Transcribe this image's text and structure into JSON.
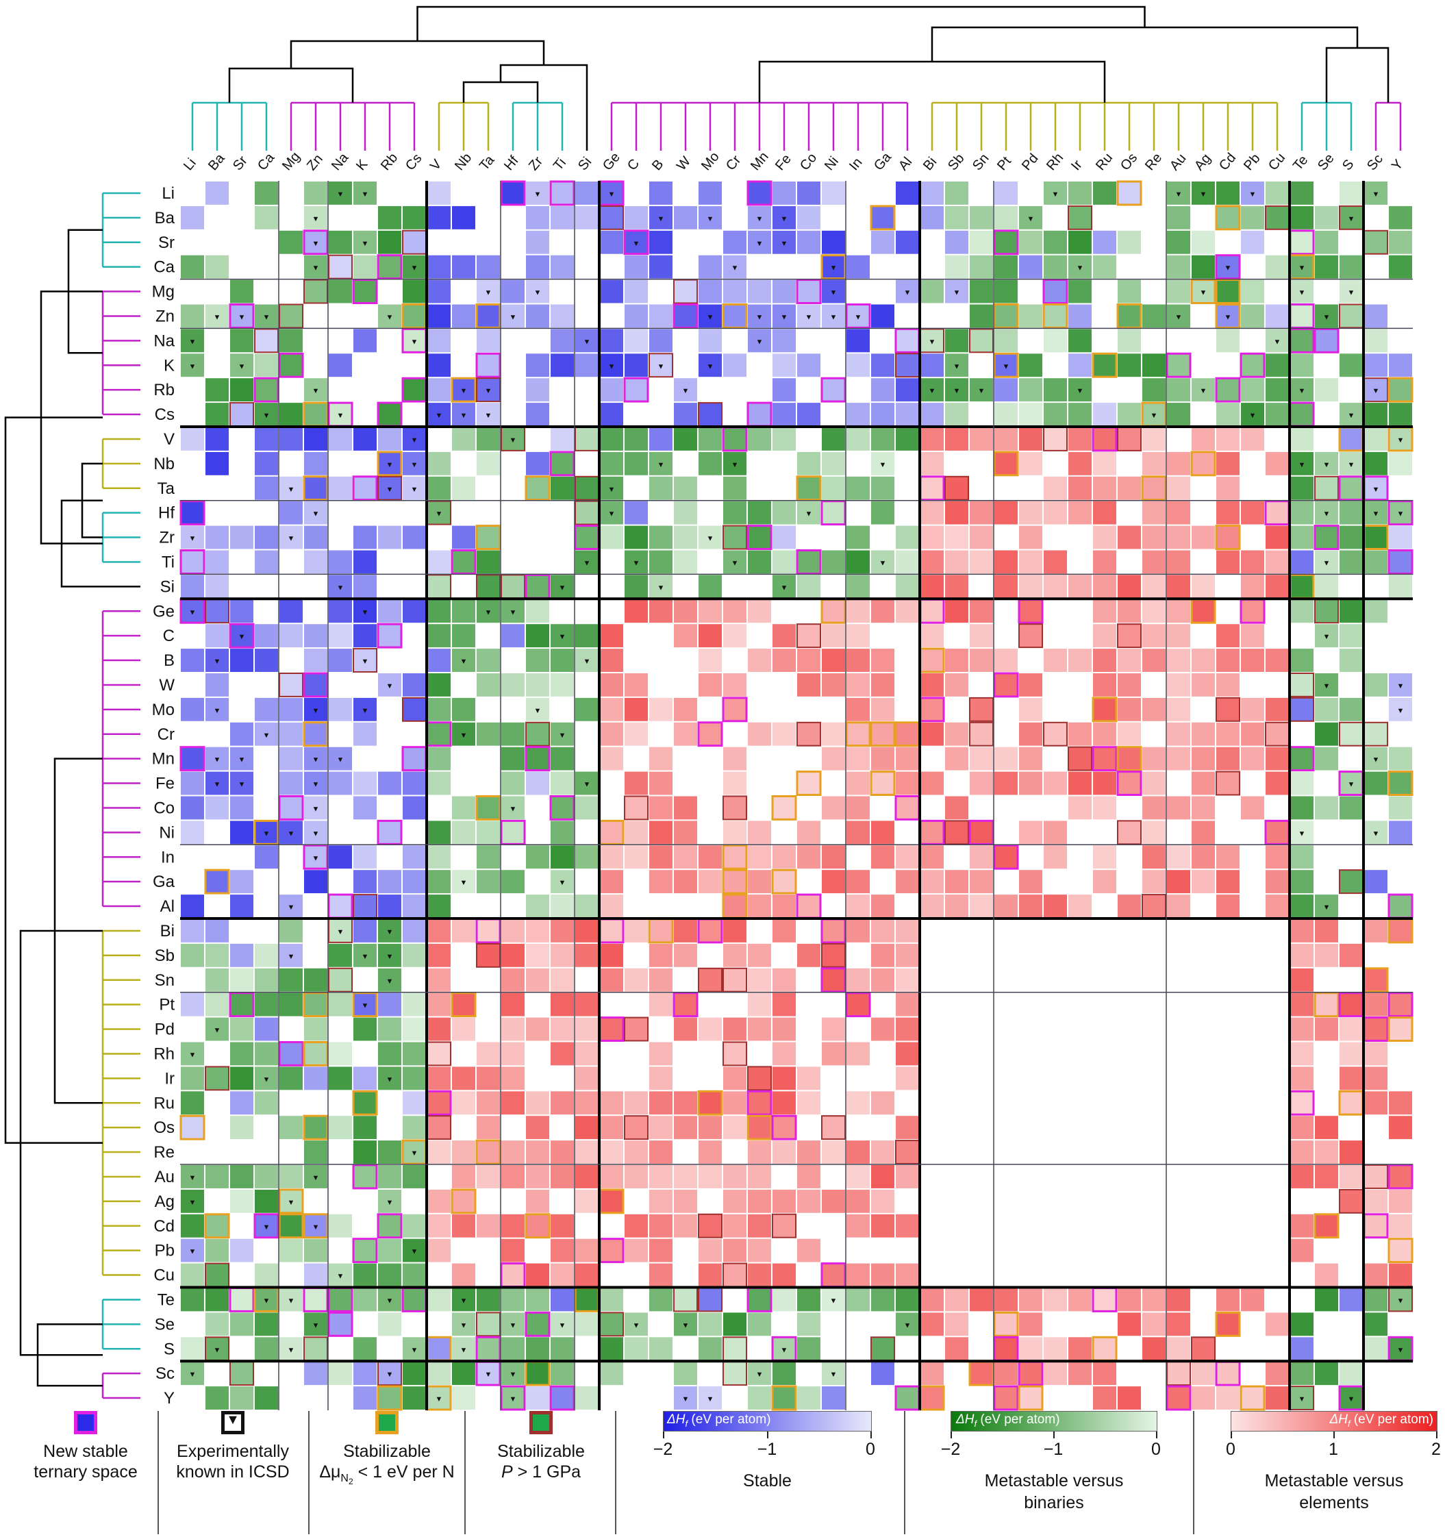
{
  "chart_data": {
    "type": "heatmap",
    "title": "",
    "elements": [
      "Li",
      "Ba",
      "Sr",
      "Ca",
      "Mg",
      "Zn",
      "Na",
      "K",
      "Rb",
      "Cs",
      "V",
      "Nb",
      "Ta",
      "Hf",
      "Zr",
      "Ti",
      "Si",
      "Ge",
      "C",
      "B",
      "W",
      "Mo",
      "Cr",
      "Mn",
      "Fe",
      "Co",
      "Ni",
      "In",
      "Ga",
      "Al",
      "Bi",
      "Sb",
      "Sn",
      "Pt",
      "Pd",
      "Rh",
      "Ir",
      "Ru",
      "Os",
      "Re",
      "Au",
      "Ag",
      "Cd",
      "Pb",
      "Cu",
      "Te",
      "Se",
      "S",
      "Sc",
      "Y"
    ],
    "clusters": [
      {
        "members": [
          "Li",
          "Ba",
          "Sr",
          "Ca"
        ],
        "color": "#22b3b3"
      },
      {
        "members": [
          "Mg",
          "Zn",
          "Na",
          "K",
          "Rb",
          "Cs"
        ],
        "color": "#c020c8"
      },
      {
        "members": [
          "V",
          "Nb",
          "Ta"
        ],
        "color": "#b8b018"
      },
      {
        "members": [
          "Hf",
          "Zr",
          "Ti"
        ],
        "color": "#22b3b3"
      },
      {
        "members": [
          "Si"
        ],
        "color": "#000000"
      },
      {
        "members": [
          "Ge",
          "C",
          "B",
          "W",
          "Mo",
          "Cr",
          "Mn",
          "Fe",
          "Co",
          "Ni",
          "In",
          "Ga",
          "Al"
        ],
        "color": "#c020c8"
      },
      {
        "members": [
          "Bi",
          "Sb",
          "Sn",
          "Pt",
          "Pd",
          "Rh",
          "Ir",
          "Ru",
          "Os",
          "Re",
          "Au",
          "Ag",
          "Cd",
          "Pb",
          "Cu"
        ],
        "color": "#b8b018"
      },
      {
        "members": [
          "Te",
          "Se",
          "S"
        ],
        "color": "#22b3b3"
      },
      {
        "members": [
          "Sc",
          "Y"
        ],
        "color": "#c020c8"
      }
    ],
    "block_boundaries_after": [
      "Ca",
      "Zn",
      "Cs",
      "Ta",
      "Ti",
      "Si",
      "Ni",
      "Al",
      "Sn",
      "Re",
      "Cu",
      "S"
    ],
    "major_boundaries_after": [
      "Cs",
      "Si",
      "Al",
      "Cu",
      "S"
    ],
    "color_scales": {
      "stable": {
        "range": [
          -2,
          0
        ],
        "colors": [
          "#1f1fe6",
          "#e8e8fb"
        ]
      },
      "metastable_vs_binaries": {
        "range": [
          -2,
          0
        ],
        "colors": [
          "#0a7a0a",
          "#e4f4e4"
        ]
      },
      "metastable_vs_elements": {
        "range": [
          0,
          2
        ],
        "colors": [
          "#fde4e4",
          "#ec2020"
        ]
      }
    },
    "cells": "reconstructed heatmap of ternary metal nitride formation energies; category per pair: stable, metastable versus binaries, metastable versus elements, or none"
  },
  "legend": {
    "items": [
      {
        "label": "New stable ternary space",
        "fill": "#2a2ae8",
        "border": "#e020e0"
      },
      {
        "label": "Experimentally known in ICSD",
        "fill": "#ffffff",
        "border": "#111111"
      },
      {
        "label": "Stabilizable Δμ_N2 < 1 eV per N",
        "fill": "#1fa84a",
        "border": "#e8a020"
      },
      {
        "label": "Stabilizable P > 1 GPa",
        "fill": "#1fa84a",
        "border": "#a03030"
      }
    ],
    "marker": "▼",
    "colorbars": [
      {
        "title": "ΔHf (eV per atom)",
        "ticks": [
          "−2",
          "−1",
          "0"
        ],
        "label": "Stable"
      },
      {
        "title": "ΔHf (eV per atom)",
        "ticks": [
          "−2",
          "−1",
          "0"
        ],
        "label": "Metastable versus binaries"
      },
      {
        "title": "ΔHf (eV per atom)",
        "ticks": [
          "0",
          "1",
          "2"
        ],
        "label": "Metastable versus elements"
      }
    ],
    "text": {
      "new_stable_1": "New stable",
      "new_stable_2": "ternary space",
      "icsd_1": "Experimentally",
      "icsd_2": "known in ICSD",
      "stab_mu_1": "Stabilizable",
      "stab_mu_2": "Δμ",
      "stab_mu_sub": "N",
      "stab_mu_subsub": "2",
      "stab_mu_3": " < 1 eV per N",
      "stab_p_1": "Stabilizable",
      "stab_p_2": "P",
      "stab_p_3": " > 1 GPa",
      "dh": "ΔH",
      "dh_sub": "f",
      "dh_units": " (eV per atom)",
      "cb1_t0": "−2",
      "cb1_t1": "−1",
      "cb1_t2": "0",
      "cb1_label": "Stable",
      "cb2_t0": "−2",
      "cb2_t1": "−1",
      "cb2_t2": "0",
      "cb2_label_1": "Metastable versus",
      "cb2_label_2": "binaries",
      "cb3_t0": "0",
      "cb3_t1": "1",
      "cb3_t2": "2",
      "cb3_label_1": "Metastable versus",
      "cb3_label_2": "elements"
    }
  }
}
